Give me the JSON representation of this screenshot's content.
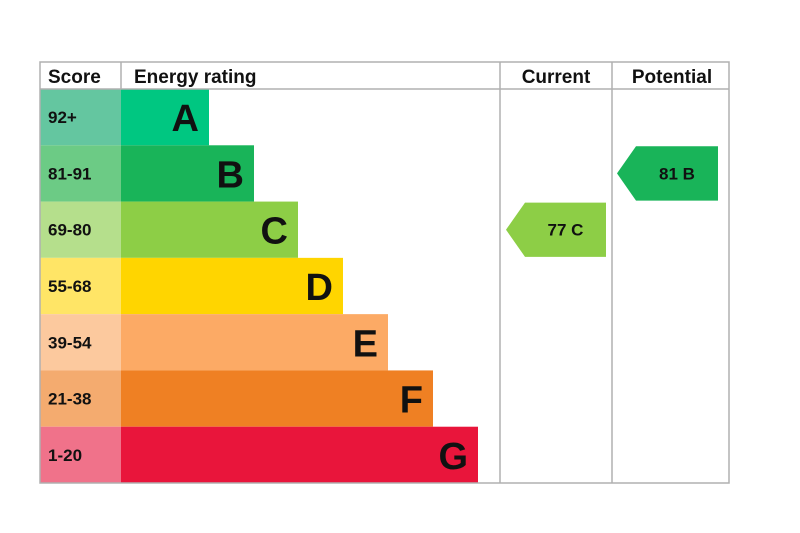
{
  "chart_data": {
    "type": "bar",
    "title": "",
    "headers": {
      "score": "Score",
      "rating": "Energy rating",
      "current": "Current",
      "potential": "Potential"
    },
    "bands": [
      {
        "letter": "A",
        "score": "92+",
        "color": "#00c781",
        "score_color": "#64c6a0"
      },
      {
        "letter": "B",
        "score": "81-91",
        "color": "#19b459",
        "score_color": "#6ccb85"
      },
      {
        "letter": "C",
        "score": "69-80",
        "color": "#8dce46",
        "score_color": "#b5df8c"
      },
      {
        "letter": "D",
        "score": "55-68",
        "color": "#ffd500",
        "score_color": "#ffe566"
      },
      {
        "letter": "E",
        "score": "39-54",
        "color": "#fcaa65",
        "score_color": "#fcc99e"
      },
      {
        "letter": "F",
        "score": "21-38",
        "color": "#ef8023",
        "score_color": "#f4ab6f"
      },
      {
        "letter": "G",
        "score": "1-20",
        "color": "#e9153b",
        "score_color": "#f0728a"
      }
    ],
    "current": {
      "value": 77,
      "band": "C",
      "label": "77  C"
    },
    "potential": {
      "value": 81,
      "band": "B",
      "label": "81  B"
    },
    "border_color": "#b0b0b0"
  }
}
